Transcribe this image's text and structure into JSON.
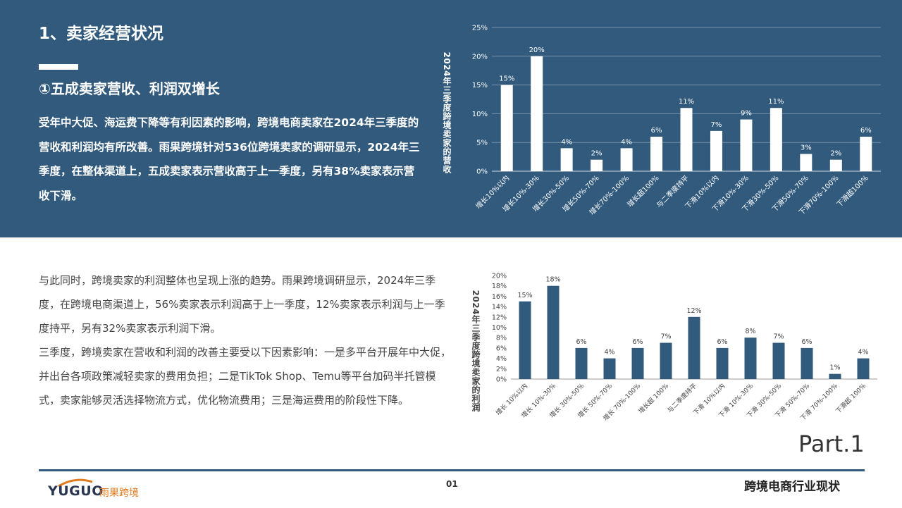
{
  "heading": {
    "title": "1、卖家经营状况",
    "subtitle": "①五成卖家营收、利润双增长"
  },
  "paragraph1": "受年中大促、海运费下降等有利因素的影响，跨境电商卖家在2024年三季度的营收和利润均有所改善。雨果跨境针对536位跨境卖家的调研显示，2024年三季度，在整体渠道上，五成卖家表示营收高于上一季度，另有38%卖家表示营收下滑。",
  "paragraph2": [
    "与此同时，跨境卖家的利润整体也呈现上涨的趋势。雨果跨境调研显示，2024年三季度，在跨境电商渠道上，56%卖家表示利润高于上一季度，12%卖家表示利润与上一季度持平，另有32%卖家表示利润下滑。",
    "三季度，跨境卖家在营收和利润的改善主要受以下因素影响：一是多平台开展年中大促，并出台各项政策减轻卖家的费用负担；二是TikTok Shop、Temu等平台加码半托管模式，卖家能够灵活选择物流方式，优化物流费用；三是海运费用的阶段性下降。"
  ],
  "chart_data": [
    {
      "type": "bar",
      "ylabel": "2024年三季度跨境卖家的营收",
      "categories": [
        "增长10%以内",
        "增长10%-30%",
        "增长30%-50%",
        "增长50%-70%",
        "增长70%-100%",
        "增长超100%",
        "与二季度持平",
        "下滑10%以内",
        "下滑10%-30%",
        "下滑30%-50%",
        "下滑50%-70%",
        "下滑70%-100%",
        "下滑超100%"
      ],
      "values": [
        15,
        20,
        4,
        2,
        4,
        6,
        11,
        7,
        9,
        11,
        3,
        2,
        6
      ],
      "data_labels": [
        "15%",
        "20%",
        "4%",
        "2%",
        "4%",
        "6%",
        "11%",
        "7%",
        "9%",
        "11%",
        "3%",
        "2%",
        "6%"
      ],
      "yticks": [
        "0%",
        "5%",
        "10%",
        "15%",
        "20%",
        "25%"
      ],
      "ylim": [
        0,
        25
      ],
      "grid": true,
      "bar_color": "#ffffff",
      "text_color": "#ffffff"
    },
    {
      "type": "bar",
      "ylabel": "2024年三季度跨境卖家的利润",
      "categories": [
        "增长 10%以内",
        "增长 10%-30%",
        "增长 30%-50%",
        "增长 50%-70%",
        "增长 70%-100%",
        "增长超 100%",
        "与二季度持平",
        "下滑 10%以内",
        "下滑 10%-30%",
        "下滑 30%-50%",
        "下滑 50%-70%",
        "下滑 70%-100%",
        "下滑超 100%"
      ],
      "values": [
        15,
        18,
        6,
        4,
        6,
        7,
        12,
        6,
        8,
        7,
        6,
        1,
        4
      ],
      "data_labels": [
        "15%",
        "18%",
        "6%",
        "4%",
        "6%",
        "7%",
        "12%",
        "6%",
        "8%",
        "7%",
        "6%",
        "1%",
        "4%"
      ],
      "yticks": [
        "0%",
        "2%",
        "4%",
        "6%",
        "8%",
        "10%",
        "12%",
        "14%",
        "16%",
        "18%",
        "20%"
      ],
      "ylim": [
        0,
        20
      ],
      "grid": false,
      "bar_color": "#315a7d",
      "text_color": "#444444"
    }
  ],
  "part_label": "Part.1",
  "footer": {
    "logo_en": "YUGUO",
    "logo_cn": "雨果跨境",
    "page": "01",
    "title": "跨境电商行业现状"
  },
  "colors": {
    "theme_blue": "#315a7d",
    "logo_orange": "#e07b1e"
  }
}
